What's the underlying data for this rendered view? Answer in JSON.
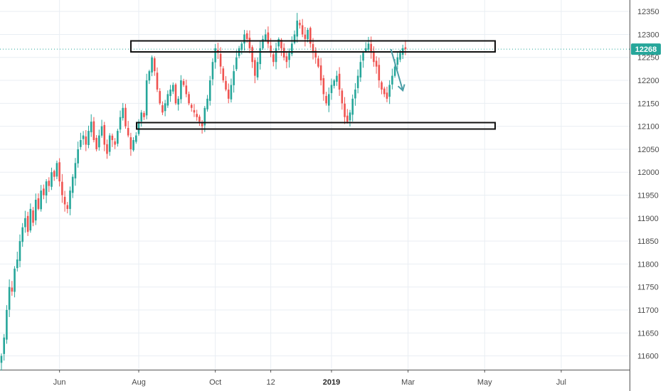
{
  "chart_data": {
    "type": "candlestick",
    "title": "",
    "xlabel": "",
    "ylabel": "",
    "ylim": [
      11570,
      12375
    ],
    "y_ticks": [
      "12350",
      "12300",
      "12250",
      "12200",
      "12150",
      "12100",
      "12050",
      "12000",
      "11950",
      "11900",
      "11850",
      "11800",
      "11750",
      "11700",
      "11650",
      "11600"
    ],
    "x_ticks": [
      {
        "label": "Jun",
        "index": 22,
        "bold": false
      },
      {
        "label": "Aug",
        "index": 52,
        "bold": false
      },
      {
        "label": "Oct",
        "index": 81,
        "bold": false
      },
      {
        "label": "12",
        "index": 102,
        "bold": false
      },
      {
        "label": "2019",
        "index": 125,
        "bold": true
      },
      {
        "label": "Mar",
        "index": 154,
        "bold": false
      },
      {
        "label": "May",
        "index": 183,
        "bold": false
      },
      {
        "label": "Jul",
        "index": 212,
        "bold": false
      }
    ],
    "last_price": "12268",
    "current_price_line": 12268,
    "grid": true,
    "colors": {
      "up": "#26a69a",
      "down": "#ef5350",
      "grid": "#e9eef3",
      "price_tag": "#26a69a",
      "boxes": "#111111",
      "arrow": "#4a9da6"
    },
    "candles_close": [
      11600,
      11640,
      11700,
      11750,
      11740,
      11790,
      11810,
      11850,
      11880,
      11900,
      11870,
      11920,
      11890,
      11940,
      11920,
      11960,
      11950,
      11980,
      11970,
      12000,
      11990,
      12020,
      11980,
      11950,
      11930,
      11920,
      11960,
      11990,
      12020,
      12050,
      12070,
      12080,
      12060,
      12090,
      12110,
      12070,
      12050,
      12080,
      12100,
      12060,
      12040,
      12080,
      12070,
      12060,
      12090,
      12120,
      12140,
      12100,
      12080,
      12050,
      12070,
      12080,
      12110,
      12130,
      12120,
      12200,
      12220,
      12250,
      12220,
      12180,
      12150,
      12130,
      12150,
      12170,
      12180,
      12190,
      12150,
      12160,
      12200,
      12190,
      12170,
      12150,
      12140,
      12130,
      12120,
      12110,
      12100,
      12140,
      12160,
      12200,
      12240,
      12270,
      12260,
      12230,
      12200,
      12180,
      12160,
      12190,
      12220,
      12250,
      12270,
      12280,
      12300,
      12290,
      12270,
      12240,
      12210,
      12240,
      12270,
      12290,
      12300,
      12280,
      12260,
      12240,
      12270,
      12290,
      12270,
      12250,
      12240,
      12260,
      12280,
      12300,
      12330,
      12320,
      12300,
      12290,
      12310,
      12280,
      12260,
      12250,
      12230,
      12200,
      12170,
      12150,
      12170,
      12190,
      12200,
      12210,
      12180,
      12150,
      12120,
      12110,
      12130,
      12160,
      12180,
      12210,
      12240,
      12260,
      12270,
      12280,
      12260,
      12240,
      12230,
      12200,
      12180,
      12170,
      12160,
      12190,
      12210,
      12230,
      12250,
      12260,
      12270,
      12268
    ]
  },
  "annotations": {
    "resistance_zone": [
      12262,
      12286
    ],
    "support_zone": [
      12094,
      12108
    ],
    "arrow": {
      "from": [
        147.5,
        12268
      ],
      "to": [
        152,
        12178
      ]
    }
  }
}
